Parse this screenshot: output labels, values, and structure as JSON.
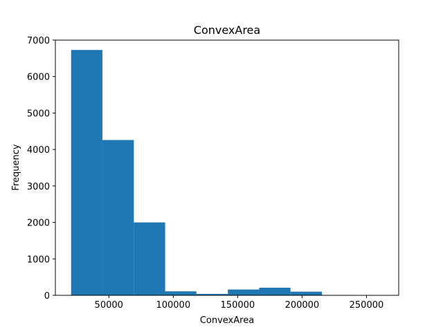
{
  "chart_data": {
    "type": "bar",
    "title": "ConvexArea",
    "xlabel": "ConvexArea",
    "ylabel": "Frequency",
    "color": "#1f77b4",
    "xlim": [
      8500,
      275000
    ],
    "ylim": [
      0,
      7000
    ],
    "xticks": [
      50000,
      100000,
      150000,
      200000,
      250000
    ],
    "yticks": [
      0,
      1000,
      2000,
      3000,
      4000,
      5000,
      6000,
      7000
    ],
    "bins": [
      {
        "x0": 20700,
        "x1": 45000,
        "count": 6730
      },
      {
        "x0": 45000,
        "x1": 69400,
        "count": 4260
      },
      {
        "x0": 69400,
        "x1": 93700,
        "count": 2000
      },
      {
        "x0": 93700,
        "x1": 118000,
        "count": 110
      },
      {
        "x0": 118000,
        "x1": 142400,
        "count": 40
      },
      {
        "x0": 142400,
        "x1": 166700,
        "count": 160
      },
      {
        "x0": 166700,
        "x1": 191000,
        "count": 210
      },
      {
        "x0": 191000,
        "x1": 215400,
        "count": 100
      },
      {
        "x0": 215400,
        "x1": 239700,
        "count": 10
      },
      {
        "x0": 239700,
        "x1": 264100,
        "count": 3
      }
    ]
  }
}
